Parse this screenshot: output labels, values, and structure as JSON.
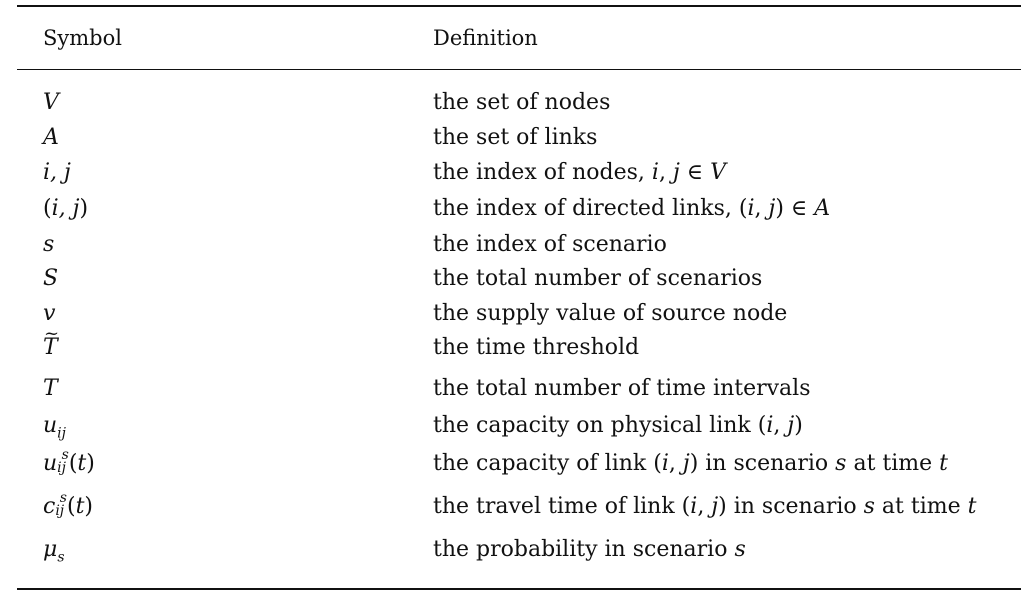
{
  "table": {
    "headers": {
      "symbol": "Symbol",
      "definition": "Definition"
    },
    "rows": [
      {
        "symbol": "V",
        "definition": "the set of nodes"
      },
      {
        "symbol": "A",
        "definition": "the set of links"
      },
      {
        "symbol": "i, j",
        "definition": "the index of nodes, i, j ∈ V"
      },
      {
        "symbol": "(i, j)",
        "definition": "the index of directed links, (i, j) ∈ A"
      },
      {
        "symbol": "s",
        "definition": "the index of scenario"
      },
      {
        "symbol": "S",
        "definition": "the total number of scenarios"
      },
      {
        "symbol": "v",
        "definition": "the supply value of source node"
      },
      {
        "symbol": "T̃",
        "definition": "the time threshold"
      },
      {
        "symbol": "T",
        "definition": "the total number of time intervals"
      },
      {
        "symbol": "u_ij",
        "definition": "the capacity on physical link (i, j)"
      },
      {
        "symbol": "u_ij^s(t)",
        "definition": "the capacity of link (i, j) in scenario s at time t"
      },
      {
        "symbol": "c_ij^s(t)",
        "definition": "the travel time of link (i, j) in scenario s at time t"
      },
      {
        "symbol": "μ_s",
        "definition": "the probability in scenario s"
      }
    ]
  }
}
